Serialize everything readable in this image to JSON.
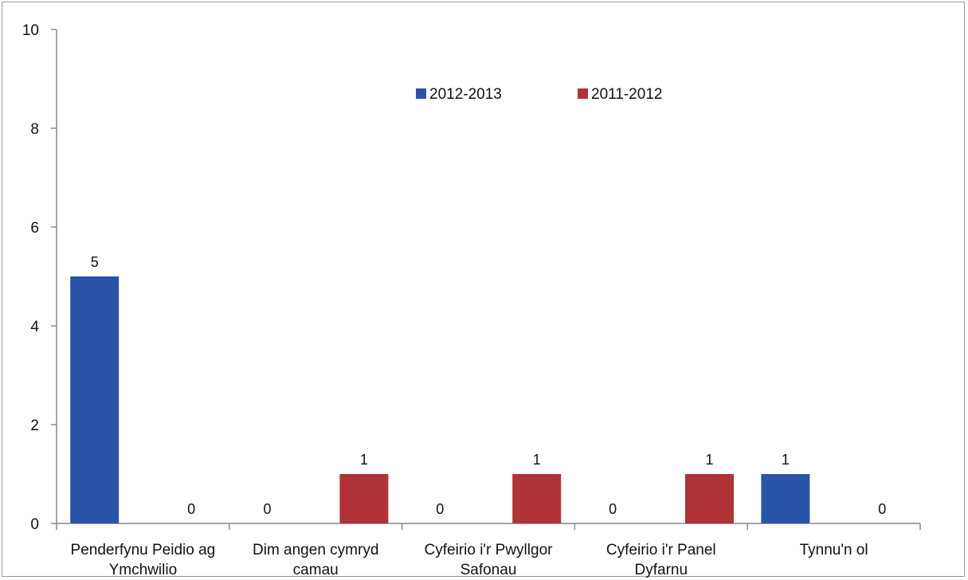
{
  "chart_data": {
    "type": "bar",
    "categories": [
      [
        "Penderfynu Peidio ag",
        "Ymchwilio"
      ],
      [
        "Dim angen cymryd",
        "camau"
      ],
      [
        "Cyfeirio i'r Pwyllgor",
        "Safonau"
      ],
      [
        "Cyfeirio i'r Panel",
        "Dyfarnu"
      ],
      [
        "Tynnu'n ol"
      ]
    ],
    "series": [
      {
        "name": "2012-2013",
        "color": "#2b53a8",
        "values": [
          5,
          0,
          0,
          0,
          1
        ]
      },
      {
        "name": "2011-2012",
        "color": "#b03338",
        "values": [
          0,
          1,
          1,
          1,
          0
        ]
      }
    ],
    "ylim": [
      0,
      10
    ],
    "yticks": [
      0,
      2,
      4,
      6,
      8,
      10
    ],
    "legend_position": "top-center",
    "grid": false
  }
}
